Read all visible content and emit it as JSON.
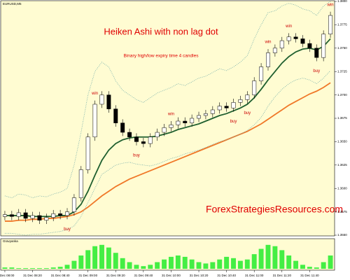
{
  "chart_data": {
    "type": "candlestick",
    "symbol": "EURUSD,M5",
    "title": "Heiken Ashi with non lag dot",
    "subtitle": "Binary high/low expiry time 4 candles",
    "watermark": "ForexStrategiesResources.com",
    "categories": [
      "31 Dec 08:00",
      null,
      null,
      null,
      "31 Dec 08:20",
      null,
      null,
      null,
      "31 Dec 08:40",
      null,
      null,
      null,
      "31 Dec 09:00",
      null,
      null,
      null,
      "31 Dec 09:20",
      null,
      null,
      null,
      "31 Dec 09:40",
      null,
      null,
      null,
      "31 Dec 10:00",
      null,
      null,
      null,
      "31 Dec 10:20",
      null,
      null,
      null,
      "31 Dec 10:40",
      null,
      null,
      null,
      "31 Dec 11:00",
      null,
      null,
      null,
      "31 Dec 11:20",
      null,
      null,
      null,
      "31 Dec 11:40",
      null,
      null,
      null
    ],
    "open": [
      1.357,
      1.3572,
      1.357,
      1.3574,
      1.3568,
      1.3571,
      1.3566,
      1.3569,
      1.3573,
      1.3571,
      1.3575,
      1.359,
      1.362,
      1.3655,
      1.369,
      1.37,
      1.3685,
      1.367,
      1.366,
      1.3655,
      1.365,
      1.3648,
      1.3655,
      1.366,
      1.3665,
      1.3668,
      1.3672,
      1.367,
      1.3675,
      1.3678,
      1.368,
      1.3684,
      1.3688,
      1.3686,
      1.3692,
      1.3695,
      1.37,
      1.3715,
      1.373,
      1.3745,
      1.375,
      1.3758,
      1.3762,
      1.376,
      1.3755,
      1.375,
      1.374,
      1.3765
    ],
    "high": [
      1.3576,
      1.3576,
      1.3578,
      1.3578,
      1.3575,
      1.3575,
      1.3573,
      1.3577,
      1.3577,
      1.3579,
      1.3594,
      1.3624,
      1.3659,
      1.3694,
      1.3704,
      1.3704,
      1.3689,
      1.3674,
      1.3664,
      1.3659,
      1.3654,
      1.3659,
      1.3664,
      1.3669,
      1.3672,
      1.3676,
      1.3676,
      1.3679,
      1.3682,
      1.3684,
      1.3688,
      1.3692,
      1.3692,
      1.3696,
      1.3699,
      1.3704,
      1.3719,
      1.3734,
      1.3749,
      1.3754,
      1.3762,
      1.3766,
      1.3766,
      1.3764,
      1.3759,
      1.3754,
      1.3769,
      1.3789
    ],
    "low": [
      1.3566,
      1.3566,
      1.3566,
      1.3564,
      1.3564,
      1.3562,
      1.3562,
      1.3565,
      1.3567,
      1.3567,
      1.3571,
      1.3586,
      1.3616,
      1.3651,
      1.3686,
      1.3681,
      1.3666,
      1.3656,
      1.3651,
      1.3646,
      1.3644,
      1.3644,
      1.3651,
      1.3656,
      1.3661,
      1.3664,
      1.3666,
      1.3666,
      1.3671,
      1.3674,
      1.3676,
      1.368,
      1.3682,
      1.3682,
      1.3688,
      1.3691,
      1.3696,
      1.3711,
      1.3726,
      1.3741,
      1.3746,
      1.3754,
      1.3756,
      1.3751,
      1.3746,
      1.3736,
      1.3736,
      1.3761
    ],
    "close": [
      1.3572,
      1.357,
      1.3574,
      1.3568,
      1.3571,
      1.3566,
      1.3569,
      1.3573,
      1.3571,
      1.3575,
      1.359,
      1.362,
      1.3655,
      1.369,
      1.37,
      1.3685,
      1.367,
      1.366,
      1.3655,
      1.365,
      1.3648,
      1.3655,
      1.366,
      1.3665,
      1.3668,
      1.3672,
      1.367,
      1.3675,
      1.3678,
      1.368,
      1.3684,
      1.3688,
      1.3686,
      1.3692,
      1.3695,
      1.37,
      1.3715,
      1.373,
      1.3745,
      1.375,
      1.3758,
      1.3762,
      1.376,
      1.3755,
      1.375,
      1.374,
      1.3765,
      1.3785
    ],
    "up_color": "#ffffff",
    "down_color": "#000000",
    "lines": [
      {
        "color": "#1f5f2f",
        "style": "solid",
        "values": [
          1.3571,
          1.3571,
          1.3571,
          1.3571,
          1.357,
          1.357,
          1.357,
          1.357,
          1.3571,
          1.3571,
          1.3575,
          1.3583,
          1.3597,
          1.3614,
          1.363,
          1.3641,
          1.3648,
          1.3652,
          1.3654,
          1.3655,
          1.3655,
          1.3655,
          1.3656,
          1.3658,
          1.366,
          1.3663,
          1.3665,
          1.3667,
          1.3669,
          1.3672,
          1.3675,
          1.3678,
          1.368,
          1.3683,
          1.3686,
          1.369,
          1.3697,
          1.3706,
          1.3716,
          1.3725,
          1.3734,
          1.3741,
          1.3746,
          1.3749,
          1.375,
          1.3748,
          1.3752,
          1.376
        ]
      },
      {
        "color": "#f07828",
        "style": "solid",
        "values": [
          1.3565,
          1.3565,
          1.3566,
          1.3566,
          1.3567,
          1.3567,
          1.3568,
          1.3568,
          1.3569,
          1.357,
          1.3572,
          1.3575,
          1.358,
          1.3586,
          1.3592,
          1.3597,
          1.3602,
          1.3606,
          1.361,
          1.3613,
          1.3616,
          1.3619,
          1.3622,
          1.3625,
          1.3628,
          1.3631,
          1.3634,
          1.3637,
          1.364,
          1.3643,
          1.3646,
          1.3649,
          1.3652,
          1.3655,
          1.3658,
          1.3661,
          1.3665,
          1.3669,
          1.3674,
          1.3679,
          1.3684,
          1.3689,
          1.3693,
          1.3697,
          1.3701,
          1.3704,
          1.3708,
          1.3713
        ]
      },
      {
        "color": "#6aa8a8",
        "style": "dotted",
        "values": [
          1.3592,
          1.359,
          1.3594,
          1.3593,
          1.359,
          1.3592,
          1.3591,
          1.3594,
          1.3596,
          1.36,
          1.3625,
          1.366,
          1.37,
          1.3725,
          1.3735,
          1.373,
          1.3715,
          1.3705,
          1.37,
          1.3695,
          1.3692,
          1.3697,
          1.3702,
          1.3705,
          1.3708,
          1.3712,
          1.371,
          1.3714,
          1.3718,
          1.372,
          1.3724,
          1.3728,
          1.3726,
          1.373,
          1.3735,
          1.3742,
          1.376,
          1.3775,
          1.3788,
          1.379,
          1.3795,
          1.3798,
          1.3796,
          1.3792,
          1.379,
          1.3785,
          1.3795,
          1.38
        ]
      },
      {
        "color": "#6aa8a8",
        "style": "dotted",
        "values": [
          1.3552,
          1.3552,
          1.3551,
          1.355,
          1.3551,
          1.3551,
          1.3552,
          1.3553,
          1.3554,
          1.3556,
          1.356,
          1.357,
          1.3585,
          1.36,
          1.3615,
          1.362,
          1.3625,
          1.3627,
          1.3628,
          1.3626,
          1.3625,
          1.3624,
          1.3626,
          1.3629,
          1.3632,
          1.3634,
          1.3637,
          1.3639,
          1.3641,
          1.3644,
          1.3647,
          1.365,
          1.3652,
          1.3655,
          1.3658,
          1.3662,
          1.3668,
          1.3676,
          1.3688,
          1.3698,
          1.3706,
          1.3712,
          1.3716,
          1.3718,
          1.3716,
          1.3712,
          1.3718,
          1.3726
        ]
      }
    ],
    "signals": [
      null,
      null,
      null,
      null,
      null,
      null,
      null,
      null,
      null,
      "buy",
      null,
      null,
      null,
      "win",
      null,
      null,
      null,
      null,
      null,
      "buy",
      null,
      null,
      null,
      null,
      "win",
      null,
      null,
      null,
      null,
      null,
      null,
      null,
      null,
      "buy",
      null,
      "buy",
      null,
      null,
      "win",
      null,
      null,
      "win",
      null,
      null,
      null,
      "buy",
      null,
      "win"
    ],
    "ylim": [
      1.355,
      1.38
    ],
    "yticks": [
      {
        "value": 1.355,
        "label": "1.3550"
      },
      1.3575,
      {
        "value": 1.36,
        "label": "1.3600"
      },
      1.3625,
      {
        "value": 1.365,
        "label": "1.3650"
      },
      1.3675,
      {
        "value": 1.37,
        "label": "1.3700"
      },
      1.3725,
      {
        "value": 1.375,
        "label": "1.3750"
      },
      1.3775,
      {
        "value": 1.38,
        "label": "1.3800"
      }
    ],
    "indicator": {
      "title": "Gravyanka",
      "color": "#44ee44",
      "values": [
        0.0002,
        0.0002,
        0.0001,
        0.0001,
        0.0001,
        0.0001,
        0.0001,
        0.0002,
        0.0003,
        0.0006,
        0.0012,
        0.002,
        0.0028,
        0.0034,
        0.0036,
        0.0032,
        0.0024,
        0.0016,
        0.001,
        0.0006,
        0.0004,
        0.0006,
        0.001,
        0.0014,
        0.0018,
        0.002,
        0.0018,
        0.0014,
        0.001,
        0.0008,
        0.001,
        0.0014,
        0.0018,
        0.0016,
        0.0012,
        0.0014,
        0.0022,
        0.003,
        0.0036,
        0.0034,
        0.0028,
        0.002,
        0.0012,
        0.0006,
        0.0003,
        0.0002,
        0.001,
        0.002
      ],
      "ylim": [
        0,
        0.004
      ]
    }
  }
}
